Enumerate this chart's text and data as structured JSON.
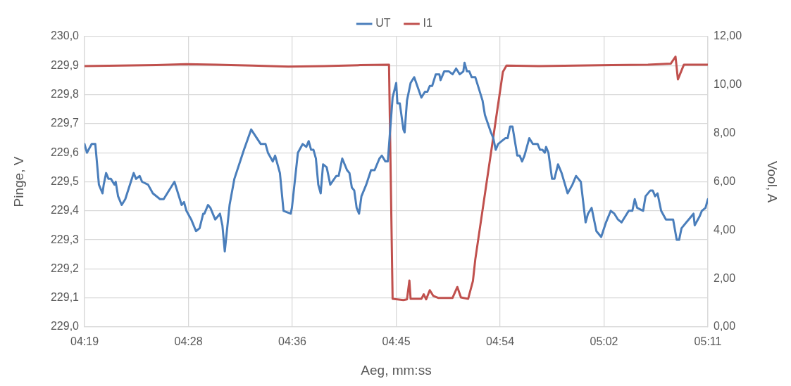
{
  "chart_data": {
    "type": "line",
    "xlabel": "Aeg, mm:ss",
    "ylabel": "Pinge, V",
    "y2label": "Vool, A",
    "legend": "top",
    "grid": true,
    "marker": "none",
    "line_style": "solid",
    "xlim": [
      259,
      311
    ],
    "xticks": [
      {
        "value": 259,
        "label": "04:19"
      },
      {
        "value": 267.667,
        "label": "04:28"
      },
      {
        "value": 276.333,
        "label": "04:36"
      },
      {
        "value": 285,
        "label": "04:45"
      },
      {
        "value": 293.667,
        "label": "04:54"
      },
      {
        "value": 302.333,
        "label": "05:02"
      },
      {
        "value": 311,
        "label": "05:11"
      }
    ],
    "ylim": [
      229.0,
      230.0
    ],
    "yticks": [
      {
        "value": 229.0,
        "label": "229,0"
      },
      {
        "value": 229.1,
        "label": "229,1"
      },
      {
        "value": 229.2,
        "label": "229,2"
      },
      {
        "value": 229.3,
        "label": "229,3"
      },
      {
        "value": 229.4,
        "label": "229,4"
      },
      {
        "value": 229.5,
        "label": "229,5"
      },
      {
        "value": 229.6,
        "label": "229,6"
      },
      {
        "value": 229.7,
        "label": "229,7"
      },
      {
        "value": 229.8,
        "label": "229,8"
      },
      {
        "value": 229.9,
        "label": "229,9"
      },
      {
        "value": 230.0,
        "label": "230,0"
      }
    ],
    "y2lim": [
      0,
      12
    ],
    "y2ticks": [
      {
        "value": 0,
        "label": "0,00"
      },
      {
        "value": 2,
        "label": "2,00"
      },
      {
        "value": 4,
        "label": "4,00"
      },
      {
        "value": 6,
        "label": "6,00"
      },
      {
        "value": 8,
        "label": "8,00"
      },
      {
        "value": 10,
        "label": "10,00"
      },
      {
        "value": 12,
        "label": "12,00"
      }
    ],
    "series": [
      {
        "name": "UT",
        "color": "#4a7ebb",
        "x": [
          259.0,
          259.2,
          259.6,
          259.9,
          260.2,
          260.5,
          260.6,
          260.8,
          261.0,
          261.2,
          261.5,
          261.6,
          261.8,
          262.1,
          262.4,
          263.1,
          263.3,
          263.6,
          263.8,
          264.3,
          264.7,
          265.3,
          265.6,
          265.9,
          266.5,
          266.8,
          267.1,
          267.3,
          267.5,
          267.9,
          268.3,
          268.6,
          268.9,
          269.0,
          269.3,
          269.5,
          269.9,
          270.3,
          270.5,
          270.7,
          271.1,
          271.5,
          271.9,
          272.3,
          272.9,
          273.7,
          274.1,
          274.3,
          274.7,
          274.9,
          275.3,
          275.6,
          276.2,
          276.3,
          276.8,
          277.2,
          277.5,
          277.7,
          277.9,
          278.1,
          278.3,
          278.5,
          278.7,
          278.9,
          279.2,
          279.5,
          280.0,
          280.2,
          280.5,
          280.9,
          281.1,
          281.3,
          281.5,
          281.7,
          281.9,
          282.1,
          282.5,
          282.9,
          283.2,
          283.6,
          283.8,
          284.1,
          284.3,
          284.7,
          285.0,
          285.1,
          285.3,
          285.6,
          285.7,
          285.9,
          286.2,
          286.5,
          287.1,
          287.4,
          287.6,
          287.8,
          288.0,
          288.3,
          288.6,
          288.7,
          289.0,
          289.4,
          289.7,
          290.0,
          290.3,
          290.6,
          290.7,
          290.9,
          291.1,
          291.3,
          291.6,
          291.9,
          292.2,
          292.4,
          292.9,
          293.1,
          293.3,
          293.5,
          293.8,
          294.1,
          294.3,
          294.5,
          294.7,
          295.1,
          295.3,
          295.5,
          295.7,
          296.1,
          296.4,
          296.8,
          297.0,
          297.2,
          297.4,
          297.5,
          297.7,
          298.0,
          298.2,
          298.5,
          298.8,
          299.3,
          299.7,
          300.0,
          300.2,
          300.4,
          300.8,
          301.0,
          301.3,
          301.7,
          302.1,
          302.5,
          302.9,
          303.2,
          303.5,
          303.8,
          304.4,
          304.7,
          304.9,
          305.1,
          305.6,
          305.8,
          306.2,
          306.4,
          306.6,
          306.8,
          307.1,
          307.5,
          307.9,
          308.1,
          308.4,
          308.6,
          308.8,
          309.2,
          309.4,
          309.8,
          309.9,
          310.3,
          310.5,
          310.8,
          311.0
        ],
        "values": [
          229.63,
          229.6,
          229.63,
          229.63,
          229.49,
          229.46,
          229.49,
          229.53,
          229.51,
          229.51,
          229.49,
          229.5,
          229.45,
          229.42,
          229.44,
          229.53,
          229.51,
          229.52,
          229.5,
          229.49,
          229.46,
          229.44,
          229.44,
          229.46,
          229.5,
          229.46,
          229.42,
          229.43,
          229.4,
          229.37,
          229.33,
          229.34,
          229.39,
          229.39,
          229.42,
          229.41,
          229.37,
          229.39,
          229.35,
          229.26,
          229.42,
          229.51,
          229.56,
          229.61,
          229.68,
          229.63,
          229.63,
          229.6,
          229.57,
          229.59,
          229.53,
          229.4,
          229.39,
          229.41,
          229.6,
          229.63,
          229.62,
          229.64,
          229.61,
          229.61,
          229.58,
          229.49,
          229.46,
          229.56,
          229.55,
          229.49,
          229.52,
          229.52,
          229.58,
          229.54,
          229.53,
          229.48,
          229.47,
          229.41,
          229.39,
          229.45,
          229.49,
          229.54,
          229.54,
          229.58,
          229.59,
          229.57,
          229.57,
          229.79,
          229.84,
          229.77,
          229.77,
          229.68,
          229.67,
          229.78,
          229.84,
          229.86,
          229.79,
          229.81,
          229.81,
          229.83,
          229.83,
          229.87,
          229.87,
          229.85,
          229.88,
          229.88,
          229.87,
          229.89,
          229.87,
          229.88,
          229.91,
          229.88,
          229.88,
          229.86,
          229.86,
          229.82,
          229.78,
          229.73,
          229.67,
          229.65,
          229.61,
          229.63,
          229.64,
          229.65,
          229.65,
          229.69,
          229.69,
          229.59,
          229.59,
          229.57,
          229.59,
          229.65,
          229.63,
          229.63,
          229.61,
          229.61,
          229.6,
          229.62,
          229.6,
          229.51,
          229.51,
          229.56,
          229.53,
          229.46,
          229.49,
          229.52,
          229.51,
          229.5,
          229.36,
          229.39,
          229.41,
          229.33,
          229.31,
          229.36,
          229.4,
          229.39,
          229.37,
          229.36,
          229.4,
          229.4,
          229.44,
          229.41,
          229.4,
          229.45,
          229.47,
          229.47,
          229.45,
          229.46,
          229.4,
          229.37,
          229.37,
          229.37,
          229.3,
          229.3,
          229.34,
          229.36,
          229.37,
          229.39,
          229.35,
          229.38,
          229.4,
          229.41,
          229.44
        ]
      },
      {
        "name": "I1",
        "color": "#c0504d",
        "axis": "y2",
        "x": [
          259.0,
          262.0,
          265.0,
          267.5,
          270.0,
          273.0,
          276.0,
          279.0,
          282.0,
          284.4,
          284.7,
          285.6,
          285.9,
          286.1,
          286.2,
          287.1,
          287.3,
          287.5,
          287.8,
          288.1,
          288.5,
          289.7,
          290.1,
          290.4,
          291.0,
          291.4,
          291.6,
          293.9,
          294.2,
          297.0,
          300.0,
          303.0,
          306.0,
          307.9,
          308.3,
          308.5,
          309.0,
          311.0
        ],
        "values": [
          10.78,
          10.8,
          10.82,
          10.86,
          10.84,
          10.8,
          10.76,
          10.78,
          10.82,
          10.84,
          1.16,
          1.11,
          1.14,
          1.92,
          1.16,
          1.16,
          1.35,
          1.14,
          1.52,
          1.28,
          1.2,
          1.2,
          1.65,
          1.22,
          1.16,
          1.9,
          2.8,
          10.54,
          10.8,
          10.78,
          10.8,
          10.82,
          10.84,
          10.88,
          11.17,
          10.23,
          10.84,
          10.84
        ]
      }
    ]
  }
}
